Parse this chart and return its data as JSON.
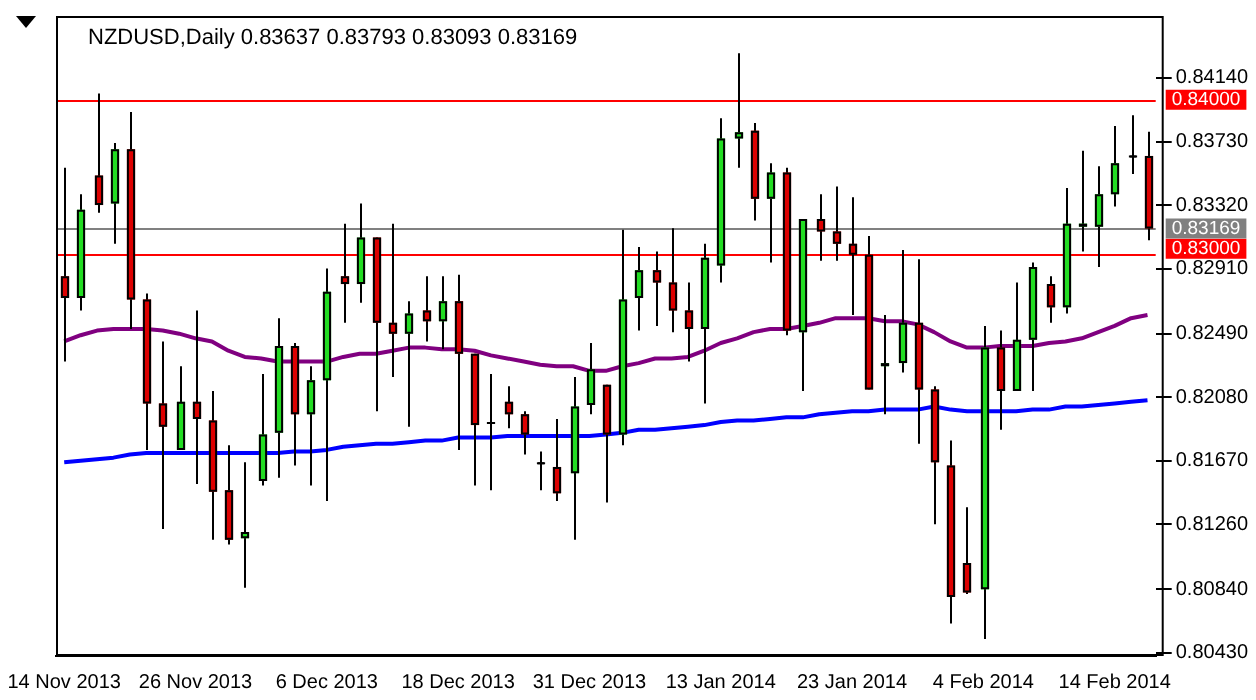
{
  "chart_data": {
    "type": "candlestick",
    "title": "NZDUSD,Daily 0.83637 0.83793 0.83093 0.83169",
    "categories": [
      "14 Nov 2013",
      null,
      null,
      null,
      null,
      null,
      null,
      null,
      "26 Nov 2013",
      null,
      null,
      null,
      null,
      null,
      null,
      null,
      "6 Dec 2013",
      null,
      null,
      null,
      null,
      null,
      null,
      null,
      "18 Dec 2013",
      null,
      null,
      null,
      null,
      null,
      null,
      null,
      "31 Dec 2013",
      null,
      null,
      null,
      null,
      null,
      null,
      null,
      "13 Jan 2014",
      null,
      null,
      null,
      null,
      null,
      null,
      null,
      "23 Jan 2014",
      null,
      null,
      null,
      null,
      null,
      null,
      null,
      "4 Feb 2014",
      null,
      null,
      null,
      null,
      null,
      null,
      null,
      "14 Feb 2014",
      null,
      null
    ],
    "ohlc": [
      [
        0.8286,
        0.8356,
        0.8231,
        0.8272
      ],
      [
        0.8272,
        0.8339,
        0.8264,
        0.8329
      ],
      [
        0.8351,
        0.8404,
        0.8327,
        0.8332
      ],
      [
        0.8333,
        0.8372,
        0.8307,
        0.8368
      ],
      [
        0.8368,
        0.8392,
        0.8252,
        0.8271
      ],
      [
        0.8271,
        0.8275,
        0.8174,
        0.8204
      ],
      [
        0.8204,
        0.8244,
        0.8123,
        0.8189
      ],
      [
        0.8174,
        0.8228,
        0.8174,
        0.8205
      ],
      [
        0.8205,
        0.8264,
        0.8152,
        0.8194
      ],
      [
        0.8193,
        0.8212,
        0.8116,
        0.8147
      ],
      [
        0.8148,
        0.8177,
        0.8113,
        0.8116
      ],
      [
        0.8117,
        0.8166,
        0.8085,
        0.8121
      ],
      [
        0.8154,
        0.8223,
        0.8151,
        0.8184
      ],
      [
        0.8185,
        0.8259,
        0.8156,
        0.8241
      ],
      [
        0.8241,
        0.8243,
        0.8164,
        0.8197
      ],
      [
        0.8197,
        0.8228,
        0.8151,
        0.8219
      ],
      [
        0.8219,
        0.8291,
        0.8141,
        0.8276
      ],
      [
        0.8286,
        0.832,
        0.8256,
        0.8281
      ],
      [
        0.8281,
        0.8333,
        0.8269,
        0.8311
      ],
      [
        0.8311,
        0.8311,
        0.8199,
        0.8256
      ],
      [
        0.8256,
        0.832,
        0.8221,
        0.8249
      ],
      [
        0.8249,
        0.827,
        0.8189,
        0.8262
      ],
      [
        0.8264,
        0.8286,
        0.8244,
        0.8257
      ],
      [
        0.8257,
        0.8286,
        0.8239,
        0.827
      ],
      [
        0.827,
        0.8287,
        0.8174,
        0.8236
      ],
      [
        0.8236,
        0.8236,
        0.8151,
        0.819
      ],
      [
        0.8192,
        0.8223,
        0.8148,
        0.8192
      ],
      [
        0.8205,
        0.8215,
        0.8188,
        0.8197
      ],
      [
        0.8197,
        0.8199,
        0.8171,
        0.8184
      ],
      [
        0.8166,
        0.8173,
        0.8148,
        0.8166
      ],
      [
        0.8163,
        0.8194,
        0.8141,
        0.8146
      ],
      [
        0.8159,
        0.8221,
        0.8116,
        0.8202
      ],
      [
        0.8203,
        0.8243,
        0.8197,
        0.8226
      ],
      [
        0.8216,
        0.8216,
        0.814,
        0.8184
      ],
      [
        0.8184,
        0.8316,
        0.8177,
        0.8271
      ],
      [
        0.8272,
        0.8305,
        0.8251,
        0.829
      ],
      [
        0.829,
        0.8302,
        0.8254,
        0.8282
      ],
      [
        0.8282,
        0.8317,
        0.825,
        0.8264
      ],
      [
        0.8264,
        0.8282,
        0.8231,
        0.8252
      ],
      [
        0.8252,
        0.8307,
        0.8204,
        0.8298
      ],
      [
        0.8293,
        0.8388,
        0.8282,
        0.8375
      ],
      [
        0.8375,
        0.843,
        0.8356,
        0.8379
      ],
      [
        0.838,
        0.8385,
        0.8322,
        0.8336
      ],
      [
        0.8336,
        0.8359,
        0.8295,
        0.8353
      ],
      [
        0.8353,
        0.8356,
        0.8248,
        0.8251
      ],
      [
        0.825,
        0.8323,
        0.8212,
        0.8323
      ],
      [
        0.8323,
        0.8339,
        0.8296,
        0.8315
      ],
      [
        0.8315,
        0.8344,
        0.8296,
        0.8307
      ],
      [
        0.8307,
        0.8337,
        0.8261,
        0.83
      ],
      [
        0.83,
        0.8312,
        0.8213,
        0.8213
      ],
      [
        0.8228,
        0.8261,
        0.8197,
        0.823
      ],
      [
        0.823,
        0.8303,
        0.8224,
        0.8256
      ],
      [
        0.8256,
        0.8297,
        0.8178,
        0.8213
      ],
      [
        0.8213,
        0.8215,
        0.8126,
        0.8166
      ],
      [
        0.8164,
        0.818,
        0.8062,
        0.8079
      ],
      [
        0.8101,
        0.8137,
        0.8081,
        0.8082
      ],
      [
        0.8084,
        0.8254,
        0.8052,
        0.824
      ],
      [
        0.824,
        0.8251,
        0.8187,
        0.8212
      ],
      [
        0.8212,
        0.8282,
        0.8212,
        0.8245
      ],
      [
        0.8245,
        0.8295,
        0.8212,
        0.8292
      ],
      [
        0.8281,
        0.8286,
        0.8256,
        0.8266
      ],
      [
        0.8266,
        0.8343,
        0.8262,
        0.832
      ],
      [
        0.8318,
        0.8367,
        0.8302,
        0.832
      ],
      [
        0.8318,
        0.8357,
        0.8292,
        0.8339
      ],
      [
        0.8339,
        0.8383,
        0.8331,
        0.8359
      ],
      [
        0.8364,
        0.839,
        0.8352,
        0.8364
      ],
      [
        0.83637,
        0.83793,
        0.83093,
        0.83169
      ]
    ],
    "colors": [
      "#dd0000",
      "#22dd22",
      "#dd0000",
      "#22dd22",
      "#dd0000",
      "#dd0000",
      "#dd0000",
      "#22dd22",
      "#dd0000",
      "#dd0000",
      "#dd0000",
      "#22dd22",
      "#22dd22",
      "#22dd22",
      "#dd0000",
      "#22dd22",
      "#22dd22",
      "#dd0000",
      "#22dd22",
      "#dd0000",
      "#dd0000",
      "#22dd22",
      "#dd0000",
      "#22dd22",
      "#dd0000",
      "#dd0000",
      "#000000",
      "#dd0000",
      "#dd0000",
      "#000000",
      "#dd0000",
      "#22dd22",
      "#22dd22",
      "#dd0000",
      "#22dd22",
      "#22dd22",
      "#dd0000",
      "#dd0000",
      "#dd0000",
      "#22dd22",
      "#22dd22",
      "#22dd22",
      "#dd0000",
      "#22dd22",
      "#dd0000",
      "#22dd22",
      "#dd0000",
      "#dd0000",
      "#dd0000",
      "#dd0000",
      "#22dd22",
      "#22dd22",
      "#dd0000",
      "#dd0000",
      "#dd0000",
      "#dd0000",
      "#22dd22",
      "#dd0000",
      "#22dd22",
      "#22dd22",
      "#dd0000",
      "#22dd22",
      "#22dd22",
      "#22dd22",
      "#22dd22",
      "#000000",
      "#dd0000"
    ],
    "series": [
      {
        "type": "line",
        "color": "#800080",
        "values": [
          0.8244,
          0.8248,
          0.8251,
          0.8252,
          0.8252,
          0.8252,
          0.8251,
          0.8249,
          0.8246,
          0.8244,
          0.8238,
          0.8234,
          0.8233,
          0.8231,
          0.8231,
          0.8231,
          0.8231,
          0.8234,
          0.8236,
          0.8236,
          0.8238,
          0.824,
          0.824,
          0.8239,
          0.8239,
          0.8238,
          0.8235,
          0.8233,
          0.8231,
          0.8229,
          0.8228,
          0.8228,
          0.8225,
          0.8225,
          0.8228,
          0.823,
          0.8233,
          0.8233,
          0.8234,
          0.8238,
          0.8243,
          0.8246,
          0.825,
          0.8252,
          0.8252,
          0.8254,
          0.8256,
          0.8259,
          0.8259,
          0.8259,
          0.8257,
          0.8257,
          0.8255,
          0.825,
          0.8244,
          0.824,
          0.824,
          0.8241,
          0.8241,
          0.8241,
          0.8243,
          0.8244,
          0.8246,
          0.825,
          0.8254,
          0.8259,
          0.8261
        ]
      },
      {
        "type": "line",
        "color": "#0000ff",
        "values": [
          0.8166,
          0.8167,
          0.8168,
          0.8169,
          0.8171,
          0.8172,
          0.8172,
          0.8172,
          0.8172,
          0.8172,
          0.8172,
          0.8172,
          0.8172,
          0.8172,
          0.8173,
          0.8173,
          0.8174,
          0.8176,
          0.8177,
          0.8178,
          0.8178,
          0.8179,
          0.818,
          0.818,
          0.8182,
          0.8182,
          0.8182,
          0.8183,
          0.8183,
          0.8183,
          0.8183,
          0.8183,
          0.8183,
          0.8184,
          0.8185,
          0.8187,
          0.8187,
          0.8188,
          0.8189,
          0.819,
          0.8192,
          0.8193,
          0.8193,
          0.8194,
          0.8195,
          0.8195,
          0.8197,
          0.8198,
          0.8199,
          0.8199,
          0.82,
          0.82,
          0.82,
          0.8202,
          0.82,
          0.8199,
          0.8199,
          0.8199,
          0.8199,
          0.82,
          0.82,
          0.8202,
          0.8202,
          0.8203,
          0.8204,
          0.8205,
          0.8206
        ]
      }
    ],
    "ylim": [
      0.8041,
      0.8454
    ],
    "yticks": [
      {
        "value": 0.8414,
        "label": "0.84140"
      },
      {
        "value": 0.8373,
        "label": "0.83730"
      },
      {
        "value": 0.8332,
        "label": "0.83320"
      },
      {
        "value": 0.8291,
        "label": "0.82910"
      },
      {
        "value": 0.8249,
        "label": "0.82490"
      },
      {
        "value": 0.8208,
        "label": "0.82080"
      },
      {
        "value": 0.8167,
        "label": "0.81670"
      },
      {
        "value": 0.8126,
        "label": "0.81260"
      },
      {
        "value": 0.8084,
        "label": "0.80840"
      },
      {
        "value": 0.8043,
        "label": "0.80430"
      }
    ],
    "ref_lines": [
      {
        "axis": "y",
        "value": 0.84,
        "label": "0.84000",
        "color": "#ff0000"
      },
      {
        "axis": "y",
        "value": 0.83,
        "label": "0.83000",
        "color": "#ff0000"
      },
      {
        "axis": "y",
        "value": 0.83169,
        "label": "0.83169",
        "color": "#808080"
      }
    ],
    "grid": false,
    "legend": false
  }
}
